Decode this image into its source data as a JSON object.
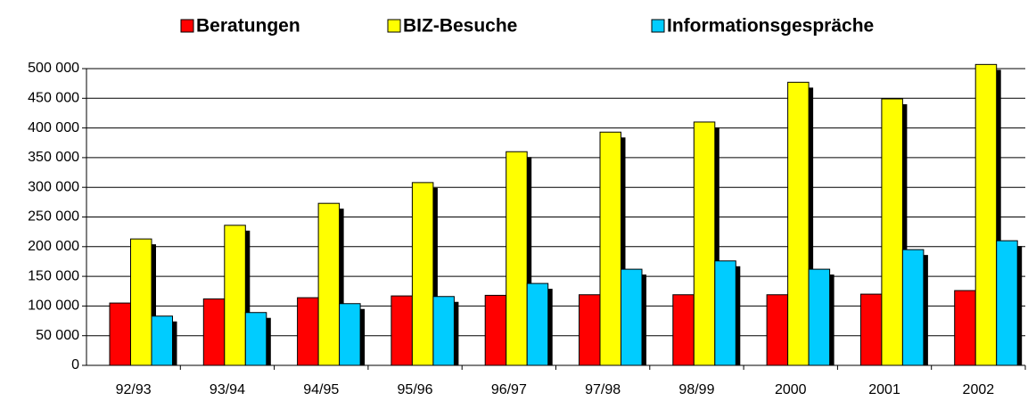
{
  "chart_data": {
    "type": "bar",
    "categories": [
      "92/93",
      "93/94",
      "94/95",
      "95/96",
      "96/97",
      "97/98",
      "98/99",
      "2000",
      "2001",
      "2002"
    ],
    "series": [
      {
        "name": "Beratungen",
        "color": "#ff0000",
        "values": [
          105000,
          112000,
          114000,
          117000,
          118000,
          119000,
          119000,
          119000,
          120000,
          126000
        ]
      },
      {
        "name": "BIZ-Besuche",
        "color": "#ffff00",
        "values": [
          213000,
          236000,
          273000,
          308000,
          360000,
          393000,
          410000,
          477000,
          449000,
          507000
        ]
      },
      {
        "name": "Informationsgespräche",
        "color": "#00ccff",
        "values": [
          83000,
          89000,
          104000,
          116000,
          138000,
          162000,
          176000,
          162000,
          195000,
          210000
        ]
      }
    ],
    "ylim": [
      0,
      500000
    ],
    "yticks": [
      0,
      {
        "value": 50000,
        "label": "50 000"
      },
      {
        "value": 100000,
        "label": "100 000"
      },
      {
        "value": 150000,
        "label": "150 000"
      },
      {
        "value": 200000,
        "label": "200 000"
      },
      {
        "value": 250000,
        "label": "250 000"
      },
      {
        "value": 300000,
        "label": "300 000"
      },
      {
        "value": 350000,
        "label": "350 000"
      },
      {
        "value": 400000,
        "label": "400 000"
      },
      {
        "value": 450000,
        "label": "450 000"
      },
      {
        "value": 500000,
        "label": "500 000"
      }
    ],
    "grid": true,
    "legend": "top",
    "shadow": true
  }
}
